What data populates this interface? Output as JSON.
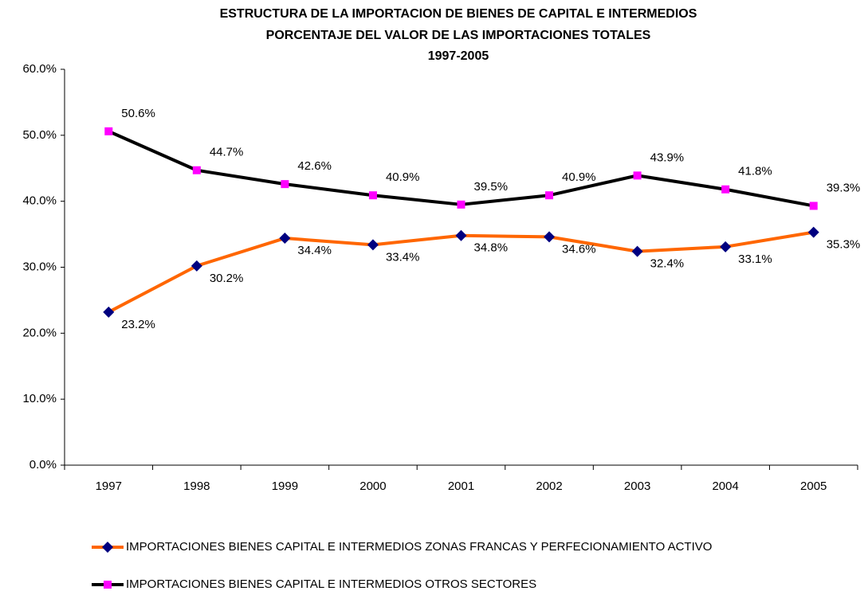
{
  "chart_data": {
    "type": "line",
    "title": [
      "ESTRUCTURA DE LA IMPORTACION DE BIENES DE CAPITAL E INTERMEDIOS",
      "PORCENTAJE DEL VALOR DE LAS IMPORTACIONES TOTALES",
      "1997-2005"
    ],
    "categories": [
      "1997",
      "1998",
      "1999",
      "2000",
      "2001",
      "2002",
      "2003",
      "2004",
      "2005"
    ],
    "series": [
      {
        "name": "IMPORTACIONES BIENES CAPITAL E INTERMEDIOS ZONAS FRANCAS Y PERFECIONAMIENTO ACTIVO",
        "color": "#ff6600",
        "marker_color": "#000080",
        "marker": "diamond",
        "values": [
          23.2,
          30.2,
          34.4,
          33.4,
          34.8,
          34.6,
          32.4,
          33.1,
          35.3
        ],
        "value_labels": [
          "23.2%",
          "30.2%",
          "34.4%",
          "33.4%",
          "34.8%",
          "34.6%",
          "32.4%",
          "33.1%",
          "35.3%"
        ]
      },
      {
        "name": "IMPORTACIONES BIENES CAPITAL E INTERMEDIOS OTROS SECTORES",
        "color": "#000000",
        "marker_color": "#ff00ff",
        "marker": "square",
        "values": [
          50.6,
          44.7,
          42.6,
          40.9,
          39.5,
          40.9,
          43.9,
          41.8,
          39.3
        ],
        "value_labels": [
          "50.6%",
          "44.7%",
          "42.6%",
          "40.9%",
          "39.5%",
          "40.9%",
          "43.9%",
          "41.8%",
          "39.3%"
        ]
      }
    ],
    "ylim": [
      0,
      60
    ],
    "yticks": [
      {
        "value": 0,
        "label": "0.0%"
      },
      {
        "value": 10,
        "label": "10.0%"
      },
      {
        "value": 20,
        "label": "20.0%"
      },
      {
        "value": 30,
        "label": "30.0%"
      },
      {
        "value": 40,
        "label": "40.0%"
      },
      {
        "value": 50,
        "label": "50.0%"
      },
      {
        "value": 60,
        "label": "60.0%"
      }
    ],
    "grid": false,
    "legend": "bottom"
  }
}
